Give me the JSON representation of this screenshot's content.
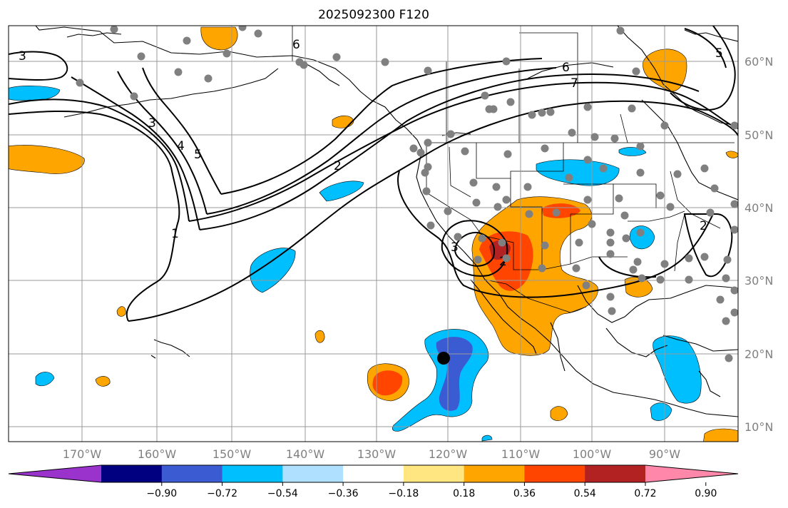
{
  "title": "2025092300 F120",
  "map": {
    "lon_range": [
      -180,
      -83
    ],
    "lat_range": [
      8,
      65
    ],
    "x_ticks": [
      "170°W",
      "160°W",
      "150°W",
      "140°W",
      "130°W",
      "120°W",
      "110°W",
      "100°W",
      "90°W"
    ],
    "y_ticks": [
      "60°N",
      "50°N",
      "40°N",
      "30°N",
      "20°N",
      "10°N"
    ],
    "contour_labels": [
      "1",
      "2",
      "3",
      "4",
      "5",
      "6",
      "7",
      "3",
      "2",
      "3",
      "6",
      "5",
      "2"
    ]
  },
  "colorbar": {
    "ticks": [
      "−0.90",
      "−0.72",
      "−0.54",
      "−0.36",
      "−0.18",
      "0.18",
      "0.36",
      "0.54",
      "0.72",
      "0.90"
    ],
    "colors": [
      "#9933cc",
      "#000080",
      "#3a5bd1",
      "#00bfff",
      "#b0e0ff",
      "#ffffff",
      "#ffe680",
      "#ffa500",
      "#ff4500",
      "#b22222",
      "#ff88aa"
    ]
  }
}
